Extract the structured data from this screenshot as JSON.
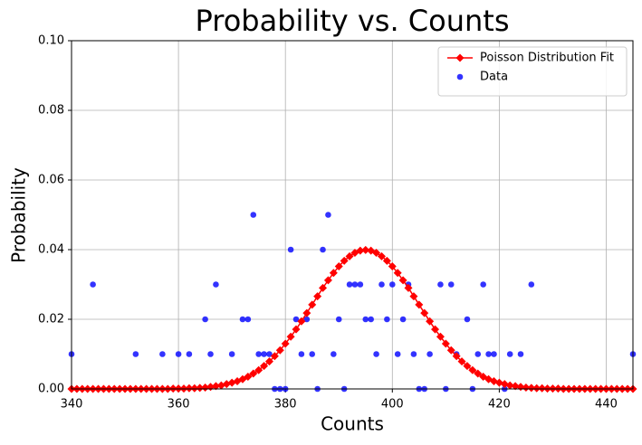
{
  "chart_data": {
    "type": "line",
    "title": "Probability vs. Counts",
    "x_label": "Counts",
    "y_label": "Probability",
    "xlim": [
      340,
      445
    ],
    "xticks": [
      340,
      360,
      380,
      400,
      420,
      440
    ],
    "ylim": [
      0,
      0.1
    ],
    "yticks": [
      {
        "value": 0,
        "label": "0.00"
      },
      {
        "value": 0.02,
        "label": "0.02"
      },
      {
        "value": 0.04,
        "label": "0.04"
      },
      {
        "value": 0.06,
        "label": "0.06"
      },
      {
        "value": 0.08,
        "label": "0.08"
      },
      {
        "value": 0.1,
        "label": "0.10"
      }
    ],
    "grid": true,
    "legend": "upper right",
    "series": [
      {
        "name": "Poisson Distribution Fit",
        "type": "line",
        "color": "#ff0000",
        "x": [
          340,
          341,
          342,
          343,
          344,
          345,
          346,
          347,
          348,
          349,
          350,
          351,
          352,
          353,
          354,
          355,
          356,
          357,
          358,
          359,
          360,
          361,
          362,
          363,
          364,
          365,
          366,
          367,
          368,
          369,
          370,
          371,
          372,
          373,
          374,
          375,
          376,
          377,
          378,
          379,
          380,
          381,
          382,
          383,
          384,
          385,
          386,
          387,
          388,
          389,
          390,
          391,
          392,
          393,
          394,
          395,
          396,
          397,
          398,
          399,
          400,
          401,
          402,
          403,
          404,
          405,
          406,
          407,
          408,
          409,
          410,
          411,
          412,
          413,
          414,
          415,
          416,
          417,
          418,
          419,
          420,
          421,
          422,
          423,
          424,
          425,
          426,
          427,
          428,
          429,
          430,
          431,
          432,
          433,
          434,
          435,
          436,
          437,
          438,
          439,
          440,
          441,
          442,
          443,
          444,
          445
        ],
        "values": [
          0,
          0,
          0,
          0,
          0,
          0,
          0,
          0,
          0,
          0,
          0,
          0,
          0,
          0,
          0,
          0,
          0,
          0,
          0,
          0.0001,
          0.0001,
          0.0001,
          0.0002,
          0.0002,
          0.0003,
          0.0004,
          0.0006,
          0.0008,
          0.001,
          0.0014,
          0.0018,
          0.0022,
          0.0028,
          0.0035,
          0.0044,
          0.0054,
          0.0066,
          0.0079,
          0.0094,
          0.0111,
          0.013,
          0.015,
          0.0171,
          0.0194,
          0.0218,
          0.0242,
          0.0266,
          0.029,
          0.0312,
          0.0333,
          0.0352,
          0.0368,
          0.0381,
          0.0391,
          0.0397,
          0.0399,
          0.0397,
          0.0391,
          0.0381,
          0.0368,
          0.0352,
          0.0333,
          0.0312,
          0.029,
          0.0266,
          0.0242,
          0.0218,
          0.0194,
          0.0171,
          0.015,
          0.013,
          0.0111,
          0.0094,
          0.0079,
          0.0066,
          0.0054,
          0.0044,
          0.0035,
          0.0028,
          0.0022,
          0.0018,
          0.0014,
          0.001,
          0.0008,
          0.0006,
          0.0004,
          0.0003,
          0.0002,
          0.0002,
          0.0001,
          0.0001,
          0.0001,
          0,
          0,
          0,
          0,
          0,
          0,
          0,
          0,
          0,
          0,
          0,
          0,
          0,
          0
        ]
      },
      {
        "name": "Data",
        "type": "scatter",
        "color": "#0000ff",
        "x": [
          340,
          344,
          352,
          357,
          360,
          362,
          365,
          366,
          367,
          370,
          372,
          373,
          374,
          375,
          376,
          377,
          378,
          379,
          380,
          381,
          382,
          383,
          384,
          385,
          386,
          387,
          388,
          389,
          390,
          391,
          392,
          393,
          394,
          395,
          396,
          397,
          398,
          399,
          400,
          401,
          402,
          403,
          404,
          405,
          406,
          407,
          409,
          410,
          411,
          412,
          414,
          415,
          416,
          417,
          418,
          419,
          421,
          422,
          424,
          426,
          445
        ],
        "values": [
          0.01,
          0.03,
          0.01,
          0.01,
          0.01,
          0.01,
          0.02,
          0.01,
          0.03,
          0.01,
          0.02,
          0.02,
          0.05,
          0.01,
          0.01,
          0.01,
          0,
          0,
          0,
          0.04,
          0.02,
          0.01,
          0.02,
          0.01,
          0,
          0.04,
          0.05,
          0.01,
          0.02,
          0,
          0.03,
          0.03,
          0.03,
          0.02,
          0.02,
          0.01,
          0.03,
          0.02,
          0.03,
          0.01,
          0.02,
          0.03,
          0.01,
          0,
          0,
          0.01,
          0.03,
          0,
          0.03,
          0.01,
          0.02,
          0,
          0.01,
          0.03,
          0.01,
          0.01,
          0,
          0.01,
          0.01,
          0.03,
          0.01
        ]
      }
    ]
  }
}
